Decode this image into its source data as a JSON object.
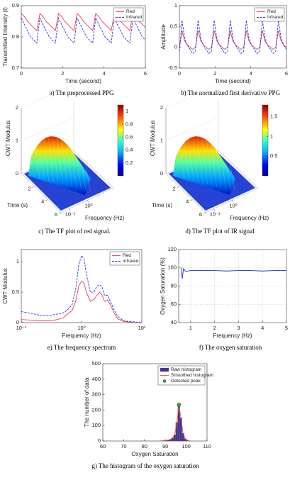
{
  "chart_data": [
    {
      "type": "line",
      "caption": "a)   The preprocessed PPG",
      "xlabel": "Time (second)",
      "ylabel": "Transmitted Intensity (I)",
      "xlim": [
        0,
        6
      ],
      "xticks": [
        0,
        2,
        4,
        6
      ],
      "ylim": [
        0.7,
        0.9
      ],
      "yticks": [
        0.7,
        0.8,
        0.9
      ],
      "legend": "upper right",
      "x": [
        0,
        0.15,
        0.3,
        0.45,
        0.6,
        0.75,
        0.9,
        1.05,
        1.2,
        1.35,
        1.5,
        1.65,
        1.8,
        1.95,
        2.1,
        2.25,
        2.4,
        2.55,
        2.7,
        2.85,
        3,
        3.15,
        3.3,
        3.45,
        3.6,
        3.75,
        3.9,
        4.05,
        4.2,
        4.35,
        4.5,
        4.65,
        4.8,
        4.95,
        5.1,
        5.25,
        5.4,
        5.55,
        5.7,
        5.85,
        6
      ],
      "series": [
        {
          "name": "Red",
          "color": "#e0405a",
          "dash": false,
          "values": [
            0.875,
            0.865,
            0.85,
            0.84,
            0.83,
            0.82,
            0.875,
            0.865,
            0.85,
            0.84,
            0.83,
            0.82,
            0.875,
            0.865,
            0.85,
            0.84,
            0.83,
            0.82,
            0.875,
            0.865,
            0.85,
            0.84,
            0.83,
            0.82,
            0.875,
            0.865,
            0.85,
            0.84,
            0.83,
            0.82,
            0.875,
            0.865,
            0.85,
            0.84,
            0.83,
            0.82,
            0.875,
            0.865,
            0.85,
            0.84,
            0.83
          ]
        },
        {
          "name": "Infrared",
          "color": "#3030d0",
          "dash": true,
          "values": [
            0.86,
            0.84,
            0.82,
            0.8,
            0.79,
            0.78,
            0.86,
            0.84,
            0.82,
            0.8,
            0.79,
            0.78,
            0.86,
            0.84,
            0.82,
            0.8,
            0.79,
            0.78,
            0.86,
            0.84,
            0.82,
            0.8,
            0.79,
            0.78,
            0.86,
            0.84,
            0.82,
            0.8,
            0.79,
            0.78,
            0.86,
            0.84,
            0.82,
            0.8,
            0.79,
            0.78,
            0.86,
            0.84,
            0.82,
            0.8,
            0.79
          ]
        }
      ]
    },
    {
      "type": "line",
      "caption": "b)  The normalized first derivative PPG",
      "xlabel": "Time (second)",
      "ylabel": "Amplitude",
      "xlim": [
        0,
        6
      ],
      "xticks": [
        0,
        2,
        4,
        6
      ],
      "ylim": [
        -0.5,
        1
      ],
      "yticks": [
        -0.5,
        0,
        0.5,
        1
      ],
      "legend": "upper right",
      "x": [
        0,
        0.15,
        0.3,
        0.45,
        0.6,
        0.75,
        0.9,
        1.05,
        1.2,
        1.35,
        1.5,
        1.65,
        1.8,
        1.95,
        2.1,
        2.25,
        2.4,
        2.55,
        2.7,
        2.85,
        3,
        3.15,
        3.3,
        3.45,
        3.6,
        3.75,
        3.9,
        4.05,
        4.2,
        4.35,
        4.5,
        4.65,
        4.8,
        4.95,
        5.1,
        5.25,
        5.4,
        5.55,
        5.7,
        5.85,
        6
      ],
      "series": [
        {
          "name": "Red",
          "color": "#e0405a",
          "dash": false,
          "values": [
            0,
            0.4,
            0.15,
            0.05,
            0,
            -0.05,
            0,
            0.4,
            0.15,
            0.05,
            0,
            -0.05,
            0,
            0.4,
            0.15,
            0.05,
            0,
            -0.05,
            0,
            0.4,
            0.15,
            0.05,
            0,
            -0.05,
            0,
            0.4,
            0.15,
            0.05,
            0,
            -0.05,
            0,
            0.4,
            0.15,
            0.05,
            0,
            -0.05,
            0,
            0.4,
            0.15,
            0.05,
            0
          ]
        },
        {
          "name": "Infrared",
          "color": "#3030d0",
          "dash": true,
          "values": [
            -0.1,
            0.65,
            0.2,
            0.05,
            -0.05,
            -0.15,
            -0.1,
            0.65,
            0.2,
            0.05,
            -0.05,
            -0.15,
            -0.1,
            0.65,
            0.2,
            0.05,
            -0.05,
            -0.15,
            -0.1,
            0.65,
            0.2,
            0.05,
            -0.05,
            -0.15,
            -0.1,
            0.65,
            0.2,
            0.05,
            -0.05,
            -0.15,
            -0.1,
            0.65,
            0.2,
            0.05,
            -0.05,
            -0.15,
            -0.1,
            0.65,
            0.2,
            0.05,
            -0.05
          ]
        }
      ]
    },
    {
      "type": "surface",
      "caption": "c)   The TF plot of red signal.",
      "zlabel": "CWT Modulus",
      "ylabel": "Time (s)",
      "xlabel": "Frequency (Hz)",
      "zlim": [
        0,
        2
      ],
      "zticks": [
        0,
        1,
        2
      ],
      "ylim": [
        0,
        6
      ],
      "yticks": [
        2,
        4,
        6
      ],
      "xscale": "log",
      "xlim": [
        0.1,
        10
      ],
      "xticks": [
        {
          "value": 0.1,
          "label": "10⁻¹"
        },
        {
          "value": 1,
          "label": "10⁰"
        }
      ],
      "colorbar_lim": [
        0,
        1.1
      ],
      "colorbar_ticks": [
        0.2,
        0.4,
        0.6,
        0.8,
        1
      ]
    },
    {
      "type": "surface",
      "caption": "d)   The TF plot of IR signal",
      "zlabel": "CWT Modulus",
      "ylabel": "Time (s)",
      "xlabel": "Frequency (Hz)",
      "zlim": [
        0,
        2
      ],
      "zticks": [
        0,
        1,
        2
      ],
      "ylim": [
        0,
        6
      ],
      "yticks": [
        2,
        4,
        6
      ],
      "xscale": "log",
      "xlim": [
        0.1,
        10
      ],
      "xticks": [
        {
          "value": 0.1,
          "label": "10⁻¹"
        },
        {
          "value": 1,
          "label": "10⁰"
        }
      ],
      "colorbar_lim": [
        0,
        1.8
      ],
      "colorbar_ticks": [
        0.5,
        1,
        1.5
      ]
    },
    {
      "type": "line",
      "caption": "e)   The frequency spectrum",
      "xlabel": "Frequency (Hz)",
      "ylabel": "CWT Modulus",
      "xscale": "log",
      "xlim": [
        0.1,
        10
      ],
      "xticks": [
        {
          "value": 0.1,
          "label": "10⁻¹"
        },
        {
          "value": 1,
          "label": "10⁰"
        },
        {
          "value": 10,
          "label": "10¹"
        }
      ],
      "ylim": [
        0,
        1.2
      ],
      "yticks": [
        0,
        0.5,
        1
      ],
      "legend": "upper right",
      "x": [
        0.1,
        0.15,
        0.2,
        0.3,
        0.4,
        0.5,
        0.6,
        0.7,
        0.8,
        0.9,
        1,
        1.1,
        1.2,
        1.4,
        1.6,
        1.8,
        2,
        2.2,
        2.4,
        2.7,
        3,
        3.5,
        4,
        5,
        6,
        8,
        10
      ],
      "series": [
        {
          "name": "Red",
          "color": "#e0405a",
          "dash": false,
          "values": [
            0.05,
            0.04,
            0.03,
            0.03,
            0.05,
            0.08,
            0.15,
            0.2,
            0.35,
            0.6,
            0.68,
            0.65,
            0.5,
            0.35,
            0.38,
            0.45,
            0.5,
            0.45,
            0.35,
            0.37,
            0.3,
            0.15,
            0.06,
            0.02,
            0.01,
            0,
            0
          ]
        },
        {
          "name": "Infrared",
          "color": "#3030d0",
          "dash": true,
          "values": [
            0.18,
            0.15,
            0.12,
            0.12,
            0.14,
            0.16,
            0.22,
            0.3,
            0.55,
            0.95,
            1.1,
            1.05,
            0.8,
            0.5,
            0.5,
            0.6,
            0.62,
            0.58,
            0.45,
            0.45,
            0.35,
            0.2,
            0.1,
            0.03,
            0.02,
            0.01,
            0
          ]
        }
      ]
    },
    {
      "type": "line",
      "caption": "f)   The oxygen saturation",
      "xlabel": "Frequency (Hz)",
      "ylabel": "Oxygen Saturation (%)",
      "xlim": [
        0.5,
        5
      ],
      "xticks": [
        1,
        2,
        3,
        4,
        5
      ],
      "ylim": [
        40,
        120
      ],
      "yticks": [
        40,
        60,
        80,
        100,
        120
      ],
      "grid": true,
      "x": [
        0.6,
        0.65,
        0.7,
        0.8,
        1,
        1.5,
        2,
        2.5,
        3,
        3.5,
        4,
        4.5,
        5
      ],
      "series": [
        {
          "color": "#2030c8",
          "dash": false,
          "values": [
            100,
            88,
            99,
            96,
            97,
            97,
            97,
            96.5,
            97,
            97,
            96.5,
            97,
            97
          ]
        }
      ]
    },
    {
      "type": "histogram",
      "caption": "g)   The histogram of the oxygen saturation",
      "xlabel": "Oxygen Saturation",
      "ylabel": "The number of data",
      "xlim": [
        60,
        110
      ],
      "xticks": [
        60,
        70,
        80,
        90,
        100,
        110
      ],
      "ylim": [
        0,
        500
      ],
      "yticks": [
        0,
        100,
        200,
        300,
        400,
        500
      ],
      "legend": "upper right",
      "bins": [
        86,
        87,
        88,
        89,
        90,
        91,
        92,
        93,
        94,
        95,
        96,
        97,
        98,
        99,
        100,
        101,
        102
      ],
      "series": [
        {
          "name": "Raw histogram",
          "style": "bar",
          "color": "#3a3a96",
          "values": [
            0,
            1,
            2,
            3,
            5,
            6,
            10,
            20,
            40,
            120,
            240,
            150,
            50,
            15,
            5,
            2
          ]
        },
        {
          "name": "Smoothed histogram",
          "style": "line",
          "color": "#e05a5a",
          "x": [
            86.5,
            87.5,
            88.5,
            89.5,
            90.5,
            91.5,
            92.5,
            93.5,
            94.5,
            95.5,
            96.5,
            97.5,
            98.5,
            99.5,
            100.5,
            101.5
          ],
          "values": [
            0,
            1,
            2,
            3,
            5,
            7,
            11,
            22,
            45,
            118,
            232,
            148,
            52,
            16,
            5,
            2
          ]
        },
        {
          "name": "Detected peak",
          "style": "marker",
          "color": "#2db52d",
          "x": [
            96.5
          ],
          "values": [
            235
          ]
        }
      ]
    }
  ]
}
